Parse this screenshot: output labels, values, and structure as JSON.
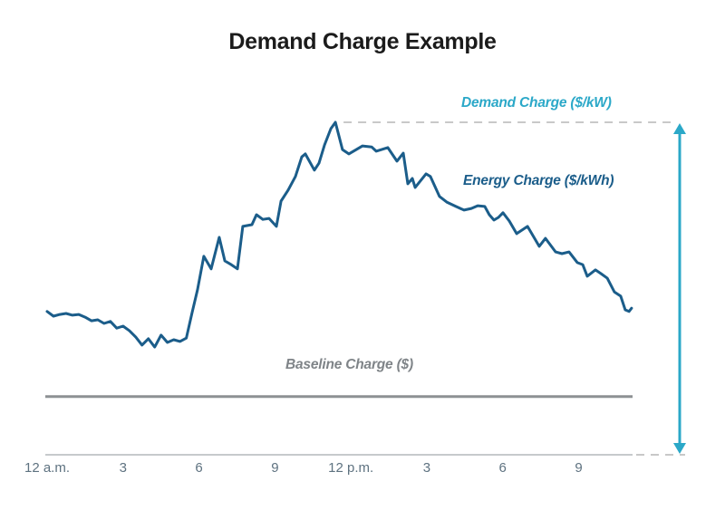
{
  "title": "Demand Charge Example",
  "annotations": {
    "demand": {
      "label": "Demand Charge ($/kW)",
      "color": "#2BA8C8"
    },
    "energy": {
      "label": "Energy Charge ($/kWh)",
      "color": "#1B5D8A"
    },
    "baseline": {
      "label": "Baseline Charge ($)",
      "color": "#7F8488"
    }
  },
  "colors": {
    "load_line": "#1B5D8A",
    "arrow_teal": "#2BA8C8",
    "dashed_gray": "#C8C8C8",
    "baseline_gray": "#8D9194",
    "axis_gray": "#B4B8BB",
    "tick_text": "#5E7280",
    "title_text": "#1B1B1B"
  },
  "chart_data": {
    "type": "line",
    "title": "Demand Charge Example",
    "xlabel": "",
    "ylabel": "",
    "grid": false,
    "legend_position": "none",
    "axis_range_hours": [
      0,
      24
    ],
    "value_range": [
      0,
      100
    ],
    "x_tick_hours": [
      0,
      3,
      6,
      9,
      12,
      15,
      18,
      21
    ],
    "x_tick_labels": [
      "12 a.m.",
      "3",
      "6",
      "9",
      "12 p.m.",
      "3",
      "6",
      "9"
    ],
    "peak_value": 100,
    "peak_hour": 11.39,
    "baseline_value": 17.5,
    "annotations_meaning": [
      "Demand Charge ($/kW): teal double arrow from peak demand down to zero",
      "Energy Charge ($/kWh): dark blue 24-hour load curve",
      "Baseline Charge ($): flat gray horizontal line"
    ],
    "series": [
      {
        "name": "24-hour load profile (relative demand, 0-100)",
        "x": [
          0,
          0.25,
          0.5,
          0.75,
          1,
          1.25,
          1.5,
          1.75,
          2,
          2.25,
          2.5,
          2.75,
          3,
          3.25,
          3.5,
          3.75,
          4,
          4.25,
          4.5,
          4.75,
          5,
          5.25,
          5.5,
          5.73,
          5.94,
          6.19,
          6.48,
          6.8,
          7.02,
          7.27,
          7.52,
          7.73,
          8.09,
          8.27,
          8.52,
          8.77,
          9.06,
          9.24,
          9.52,
          9.81,
          10.06,
          10.2,
          10.56,
          10.74,
          10.96,
          11.21,
          11.39,
          11.67,
          11.92,
          12.46,
          12.82,
          13,
          13.46,
          13.82,
          14.07,
          14.25,
          14.43,
          14.54,
          14.97,
          15.14,
          15.5,
          15.79,
          16.15,
          16.47,
          16.76,
          17.01,
          17.29,
          17.47,
          17.65,
          17.83,
          18.01,
          18.26,
          18.55,
          18.98,
          19.44,
          19.69,
          20.09,
          20.34,
          20.62,
          20.95,
          21.16,
          21.34,
          21.66,
          21.88,
          22.13,
          22.41,
          22.66,
          22.84,
          22.99,
          23.09
        ],
        "values": [
          43.1,
          41.7,
          42.2,
          42.5,
          42.0,
          42.2,
          41.4,
          40.3,
          40.6,
          39.5,
          40.1,
          38.1,
          38.7,
          37.3,
          35.4,
          33.0,
          34.9,
          32.4,
          36.0,
          33.8,
          34.6,
          34.1,
          35.1,
          42.8,
          49.6,
          59.7,
          55.9,
          65.4,
          58.3,
          57.2,
          55.9,
          68.7,
          69.2,
          72.2,
          70.8,
          71.1,
          68.7,
          76.3,
          79.6,
          83.7,
          89.6,
          90.5,
          85.6,
          87.7,
          93.2,
          98.1,
          100.0,
          91.8,
          90.5,
          92.9,
          92.6,
          91.3,
          92.4,
          88.3,
          90.7,
          81.5,
          83.1,
          80.4,
          84.5,
          83.7,
          77.7,
          76.0,
          74.7,
          73.6,
          74.1,
          74.9,
          74.7,
          72.2,
          70.6,
          71.4,
          72.8,
          70.3,
          66.5,
          68.7,
          62.7,
          65.1,
          61.0,
          60.5,
          61.0,
          57.8,
          57.2,
          53.7,
          55.6,
          54.5,
          53.1,
          49.0,
          47.7,
          43.6,
          43.1,
          44.1
        ]
      }
    ]
  }
}
